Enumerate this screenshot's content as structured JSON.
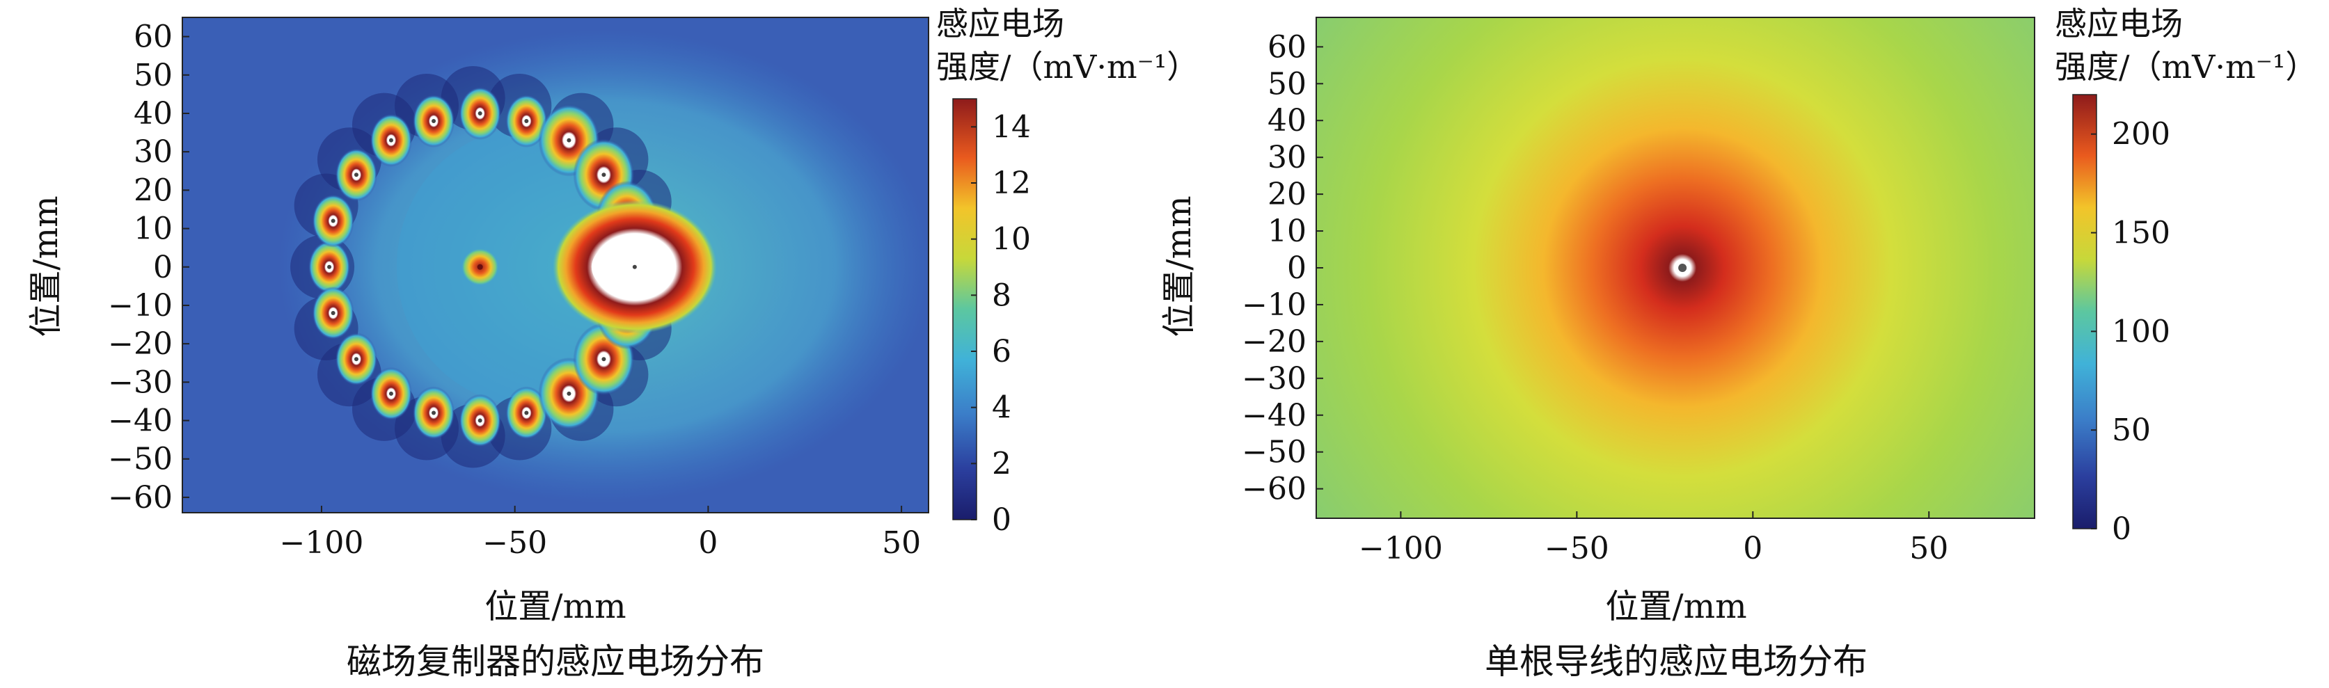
{
  "chart_data": [
    {
      "type": "heatmap",
      "caption": "磁场复制器的感应电场分布",
      "xlabel": "位置/mm",
      "ylabel": "位置/mm",
      "xlim": [
        -136,
        57
      ],
      "ylim": [
        -64,
        65
      ],
      "xticks": [
        -100,
        -50,
        0,
        50
      ],
      "yticks": [
        60,
        50,
        40,
        30,
        20,
        10,
        0,
        -10,
        -20,
        -30,
        -40,
        -50,
        -60
      ],
      "colorbar": {
        "title_line1": "感应电场",
        "title_line2": "强度/（mV·m⁻¹）",
        "min": 0,
        "max": 15,
        "ticks": [
          0,
          2,
          4,
          6,
          8,
          10,
          12,
          14
        ]
      },
      "conductors": [
        {
          "x": -98,
          "y": 0
        },
        {
          "x": -97,
          "y": 12
        },
        {
          "x": -97,
          "y": -12
        },
        {
          "x": -91,
          "y": 24
        },
        {
          "x": -91,
          "y": -24
        },
        {
          "x": -82,
          "y": 33
        },
        {
          "x": -82,
          "y": -33
        },
        {
          "x": -71,
          "y": 38
        },
        {
          "x": -71,
          "y": -38
        },
        {
          "x": -59,
          "y": 40
        },
        {
          "x": -59,
          "y": -40
        },
        {
          "x": -47,
          "y": 38
        },
        {
          "x": -47,
          "y": -38
        },
        {
          "x": -36,
          "y": 33
        },
        {
          "x": -36,
          "y": -33
        },
        {
          "x": -27,
          "y": 24
        },
        {
          "x": -27,
          "y": -24
        },
        {
          "x": -21,
          "y": 13
        },
        {
          "x": -21,
          "y": -12
        }
      ],
      "center_source": {
        "x": -59,
        "y": 0
      },
      "focus_region": {
        "x": -19,
        "y": 0
      }
    },
    {
      "type": "heatmap",
      "caption": "单根导线的感应电场分布",
      "xlabel": "位置/mm",
      "ylabel": "位置/mm",
      "xlim": [
        -124,
        80
      ],
      "ylim": [
        -68,
        68
      ],
      "xticks": [
        -100,
        -50,
        0,
        50
      ],
      "yticks": [
        60,
        50,
        40,
        30,
        20,
        10,
        0,
        -10,
        -20,
        -30,
        -40,
        -50,
        -60
      ],
      "colorbar": {
        "title_line1": "感应电场",
        "title_line2": "强度/（mV·m⁻¹）",
        "min": 0,
        "max": 220,
        "ticks": [
          0,
          50,
          100,
          150,
          200
        ]
      },
      "single_wire": {
        "x": -20,
        "y": 0
      }
    }
  ]
}
